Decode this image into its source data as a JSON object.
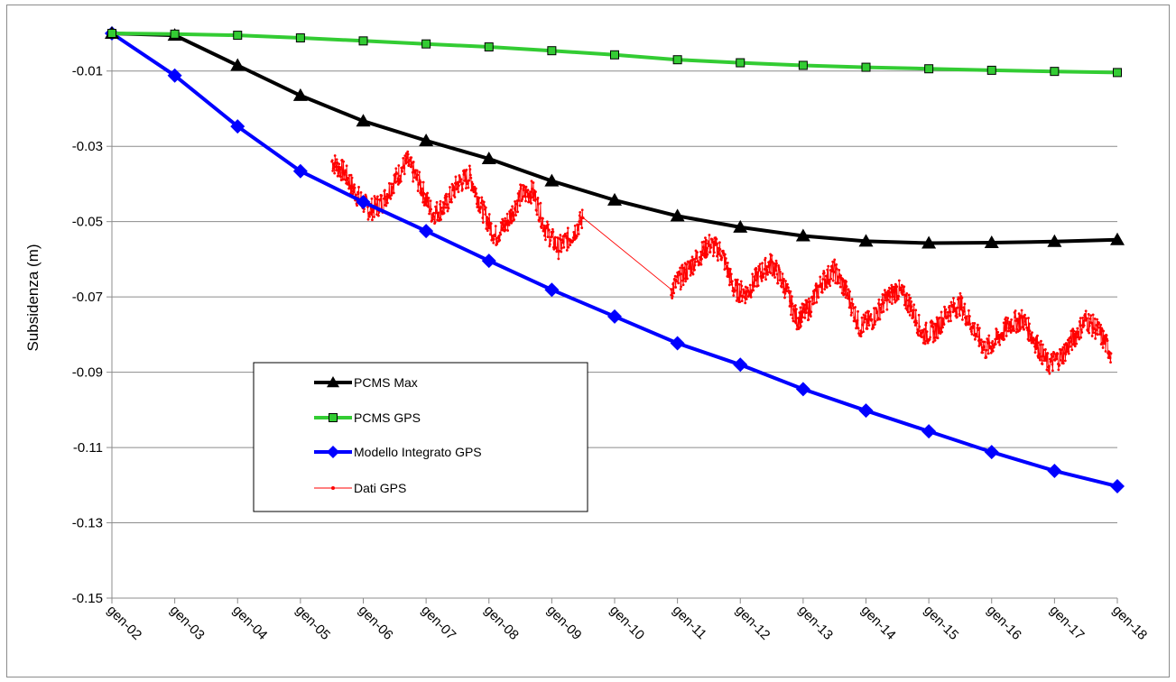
{
  "chart_data": {
    "type": "line",
    "title": "",
    "xlabel": "",
    "ylabel": "Subsidenza (m)",
    "x_ticks": [
      "gen-02",
      "gen-03",
      "gen-04",
      "gen-05",
      "gen-06",
      "gen-07",
      "gen-08",
      "gen-09",
      "gen-10",
      "gen-11",
      "gen-12",
      "gen-13",
      "gen-14",
      "gen-15",
      "gen-16",
      "gen-17",
      "gen-18"
    ],
    "y_ticks": [
      "-0.01",
      "-0.03",
      "-0.05",
      "-0.07",
      "-0.09",
      "-0.11",
      "-0.13",
      "-0.15"
    ],
    "xlim": [
      2002,
      2018
    ],
    "ylim": [
      -0.15,
      0.0
    ],
    "grid": "horizontal",
    "legend": "inside-lower-left",
    "series": [
      {
        "name": "PCMS Max",
        "color": "#000000",
        "marker": "triangle",
        "x": [
          2002,
          2003,
          2004,
          2005,
          2006,
          2007,
          2008,
          2009,
          2010,
          2011,
          2012,
          2013,
          2014,
          2015,
          2016,
          2017,
          2018
        ],
        "values": [
          0.0,
          -0.0005,
          -0.0085,
          -0.0165,
          -0.0233,
          -0.0285,
          -0.0333,
          -0.0392,
          -0.0443,
          -0.0485,
          -0.0515,
          -0.0538,
          -0.0552,
          -0.0557,
          -0.0556,
          -0.0553,
          -0.0548
        ]
      },
      {
        "name": "PCMS GPS",
        "color": "#33cc33",
        "marker": "square",
        "x": [
          2002,
          2003,
          2004,
          2005,
          2006,
          2007,
          2008,
          2009,
          2010,
          2011,
          2012,
          2013,
          2014,
          2015,
          2016,
          2017,
          2018
        ],
        "values": [
          0.0,
          -0.0002,
          -0.0005,
          -0.0012,
          -0.002,
          -0.0028,
          -0.0036,
          -0.0046,
          -0.0057,
          -0.007,
          -0.0078,
          -0.0085,
          -0.009,
          -0.0094,
          -0.0098,
          -0.0101,
          -0.0104
        ]
      },
      {
        "name": "Modello Integrato GPS",
        "color": "#0000ff",
        "marker": "diamond",
        "x": [
          2002,
          2003,
          2004,
          2005,
          2006,
          2007,
          2008,
          2009,
          2010,
          2011,
          2012,
          2013,
          2014,
          2015,
          2016,
          2017,
          2018
        ],
        "values": [
          0.0,
          -0.0112,
          -0.0247,
          -0.0366,
          -0.0448,
          -0.0525,
          -0.0604,
          -0.0681,
          -0.0752,
          -0.0823,
          -0.088,
          -0.0945,
          -0.1002,
          -0.1057,
          -0.1112,
          -0.1162,
          -0.1203
        ]
      },
      {
        "name": "Dati GPS",
        "color": "#ff0000",
        "marker": "dot",
        "x": [
          2005.5,
          2005.7,
          2005.9,
          2006.1,
          2006.3,
          2006.5,
          2006.7,
          2006.9,
          2007.1,
          2007.3,
          2007.5,
          2007.7,
          2007.9,
          2008.1,
          2008.3,
          2008.5,
          2008.7,
          2008.9,
          2009.1,
          2009.3,
          2009.5,
          2010.9,
          2011.1,
          2011.3,
          2011.5,
          2011.7,
          2011.9,
          2012.1,
          2012.3,
          2012.5,
          2012.7,
          2012.9,
          2013.1,
          2013.3,
          2013.5,
          2013.7,
          2013.9,
          2014.1,
          2014.3,
          2014.5,
          2014.7,
          2014.9,
          2015.1,
          2015.3,
          2015.5,
          2015.7,
          2015.9,
          2016.1,
          2016.3,
          2016.5,
          2016.7,
          2016.9,
          2017.1,
          2017.3,
          2017.5,
          2017.7,
          2017.9
        ],
        "values": [
          -0.034,
          -0.037,
          -0.043,
          -0.047,
          -0.045,
          -0.039,
          -0.034,
          -0.04,
          -0.048,
          -0.046,
          -0.04,
          -0.038,
          -0.047,
          -0.054,
          -0.05,
          -0.043,
          -0.042,
          -0.052,
          -0.057,
          -0.054,
          -0.049,
          -0.068,
          -0.064,
          -0.06,
          -0.056,
          -0.058,
          -0.068,
          -0.069,
          -0.064,
          -0.061,
          -0.067,
          -0.076,
          -0.073,
          -0.066,
          -0.063,
          -0.069,
          -0.078,
          -0.076,
          -0.071,
          -0.068,
          -0.072,
          -0.08,
          -0.079,
          -0.074,
          -0.072,
          -0.078,
          -0.084,
          -0.081,
          -0.077,
          -0.076,
          -0.082,
          -0.088,
          -0.086,
          -0.081,
          -0.076,
          -0.079,
          -0.085
        ]
      }
    ]
  }
}
